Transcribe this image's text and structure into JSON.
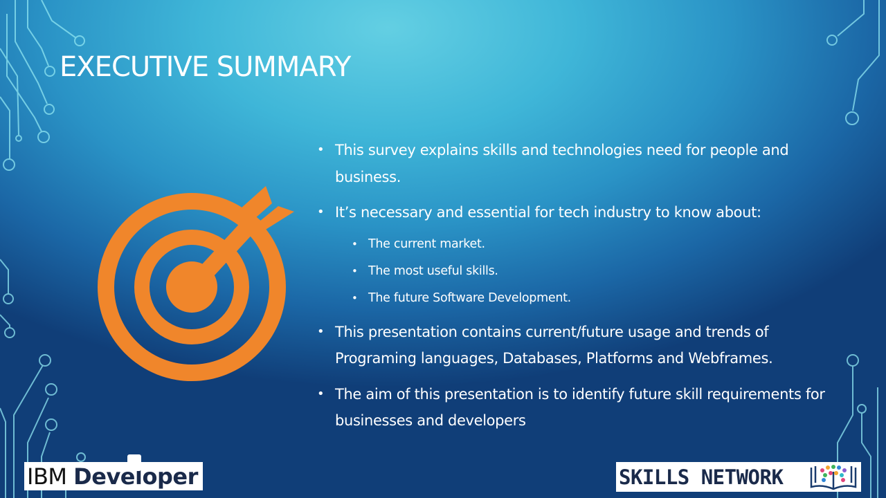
{
  "slide": {
    "title": "EXECUTIVE SUMMARY",
    "bullets": [
      {
        "text": "This survey explains skills and technologies need for people and business."
      },
      {
        "text": "It’s necessary and essential for tech industry to know about:",
        "sub_bullets": [
          "The current market.",
          "The most useful skills.",
          "The future Software Development."
        ]
      },
      {
        "text": "This presentation contains current/future usage and trends of Programing languages, Databases, Platforms and Webframes."
      },
      {
        "text": "The aim of this presentation is to identify future skill requirements for businesses and developers"
      }
    ]
  },
  "logos": {
    "ibm_prefix": "IBM",
    "ibm_suffix": "Developer",
    "skills_network": "SKILLS NETWORK"
  },
  "icons": {
    "target": "target-with-arrow-icon",
    "skills_network": "open-book-network-icon"
  },
  "colors": {
    "accent": "#f0862b",
    "text": "#ffffff",
    "circuit": "#8fe6f2"
  }
}
